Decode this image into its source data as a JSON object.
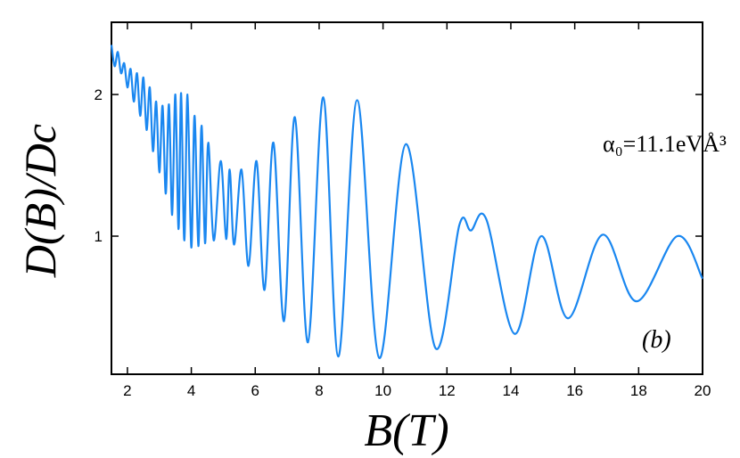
{
  "chart_data": {
    "type": "line",
    "x_label": "B(T)",
    "y_label": "D(B)/Dc",
    "annotation": "α₀=11.1eVÅ³",
    "panel_label": "(b)",
    "x": [
      1.5,
      1.6,
      1.7,
      1.8,
      1.9,
      2.0,
      2.1,
      2.2,
      2.3,
      2.4,
      2.5,
      2.6,
      2.7,
      2.8,
      2.9,
      3.0,
      3.1,
      3.2,
      3.3,
      3.4,
      3.5,
      3.6,
      3.68,
      3.78,
      3.88,
      4.0,
      4.1,
      4.22,
      4.32,
      4.43,
      4.53,
      4.7,
      4.92,
      5.09,
      5.2,
      5.34,
      5.57,
      5.79,
      6.04,
      6.29,
      6.57,
      6.9,
      7.24,
      7.65,
      8.13,
      8.6,
      9.19,
      9.88,
      10.72,
      11.64,
      12.39,
      12.75,
      13.23,
      14.12,
      14.95,
      15.79,
      16.87,
      17.93,
      19.21,
      20.0
    ],
    "series": [
      {
        "name": "D(B)/Dc",
        "color": "#1a87f0",
        "values": [
          2.35,
          2.2,
          2.3,
          2.15,
          2.22,
          2.05,
          2.18,
          1.95,
          2.15,
          1.85,
          2.12,
          1.75,
          2.05,
          1.6,
          1.95,
          1.45,
          1.92,
          1.3,
          1.93,
          1.15,
          2.0,
          1.05,
          2.01,
          0.97,
          2.0,
          0.92,
          1.85,
          0.93,
          1.78,
          0.95,
          1.66,
          0.97,
          1.53,
          0.98,
          1.47,
          0.94,
          1.47,
          0.79,
          1.53,
          0.62,
          1.66,
          0.4,
          1.84,
          0.25,
          1.98,
          0.15,
          1.96,
          0.14,
          1.65,
          0.21,
          1.08,
          1.04,
          1.12,
          0.31,
          1.0,
          0.42,
          1.01,
          0.54,
          1.0,
          0.7
        ]
      }
    ],
    "xlim": [
      1.5,
      20
    ],
    "ylim": [
      0.025,
      2.51
    ],
    "xticks": [
      2,
      4,
      6,
      8,
      10,
      12,
      14,
      16,
      18,
      20
    ],
    "yticks": [
      1,
      2
    ]
  }
}
